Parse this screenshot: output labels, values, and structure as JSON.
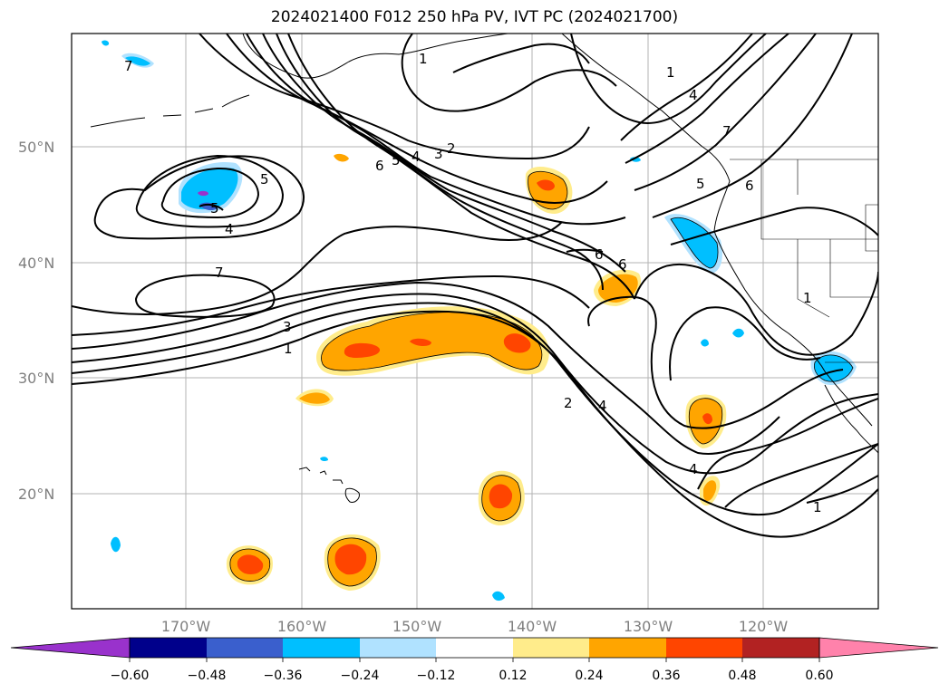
{
  "title": "2024021400 F012 250 hPa PV, IVT PC (2024021700)",
  "latitude_labels": [
    "50°N",
    "40°N",
    "30°N",
    "20°N"
  ],
  "longitude_labels": [
    "170°W",
    "160°W",
    "150°W",
    "140°W",
    "130°W",
    "120°W"
  ],
  "contour_labels": [
    "1",
    "7",
    "1",
    "4",
    "5",
    "7",
    "6",
    "5",
    "4",
    "3",
    "2",
    "5",
    "6",
    "5",
    "4",
    "7",
    "6",
    "6",
    "1",
    "3",
    "1",
    "2",
    "4",
    "4",
    "1"
  ],
  "colorbar": {
    "tick_labels": [
      "−0.60",
      "−0.48",
      "−0.36",
      "−0.24",
      "−0.12",
      "0.12",
      "0.24",
      "0.36",
      "0.48",
      "0.60"
    ],
    "colors": [
      "#9932cc",
      "#00008b",
      "#3a5fcd",
      "#00bfff",
      "#b0e2ff",
      "#ffffff",
      "#ffec8b",
      "#ffa500",
      "#ff4500",
      "#b22222",
      "#ff82ab"
    ]
  },
  "colors": {
    "neg_light": "#b0e2ff",
    "neg_mid": "#00bfff",
    "neg_dark": "#3a5fcd",
    "neg_purple": "#9932cc",
    "pos_light": "#ffec8b",
    "pos_mid": "#ffa500",
    "pos_strong": "#ff4500"
  }
}
